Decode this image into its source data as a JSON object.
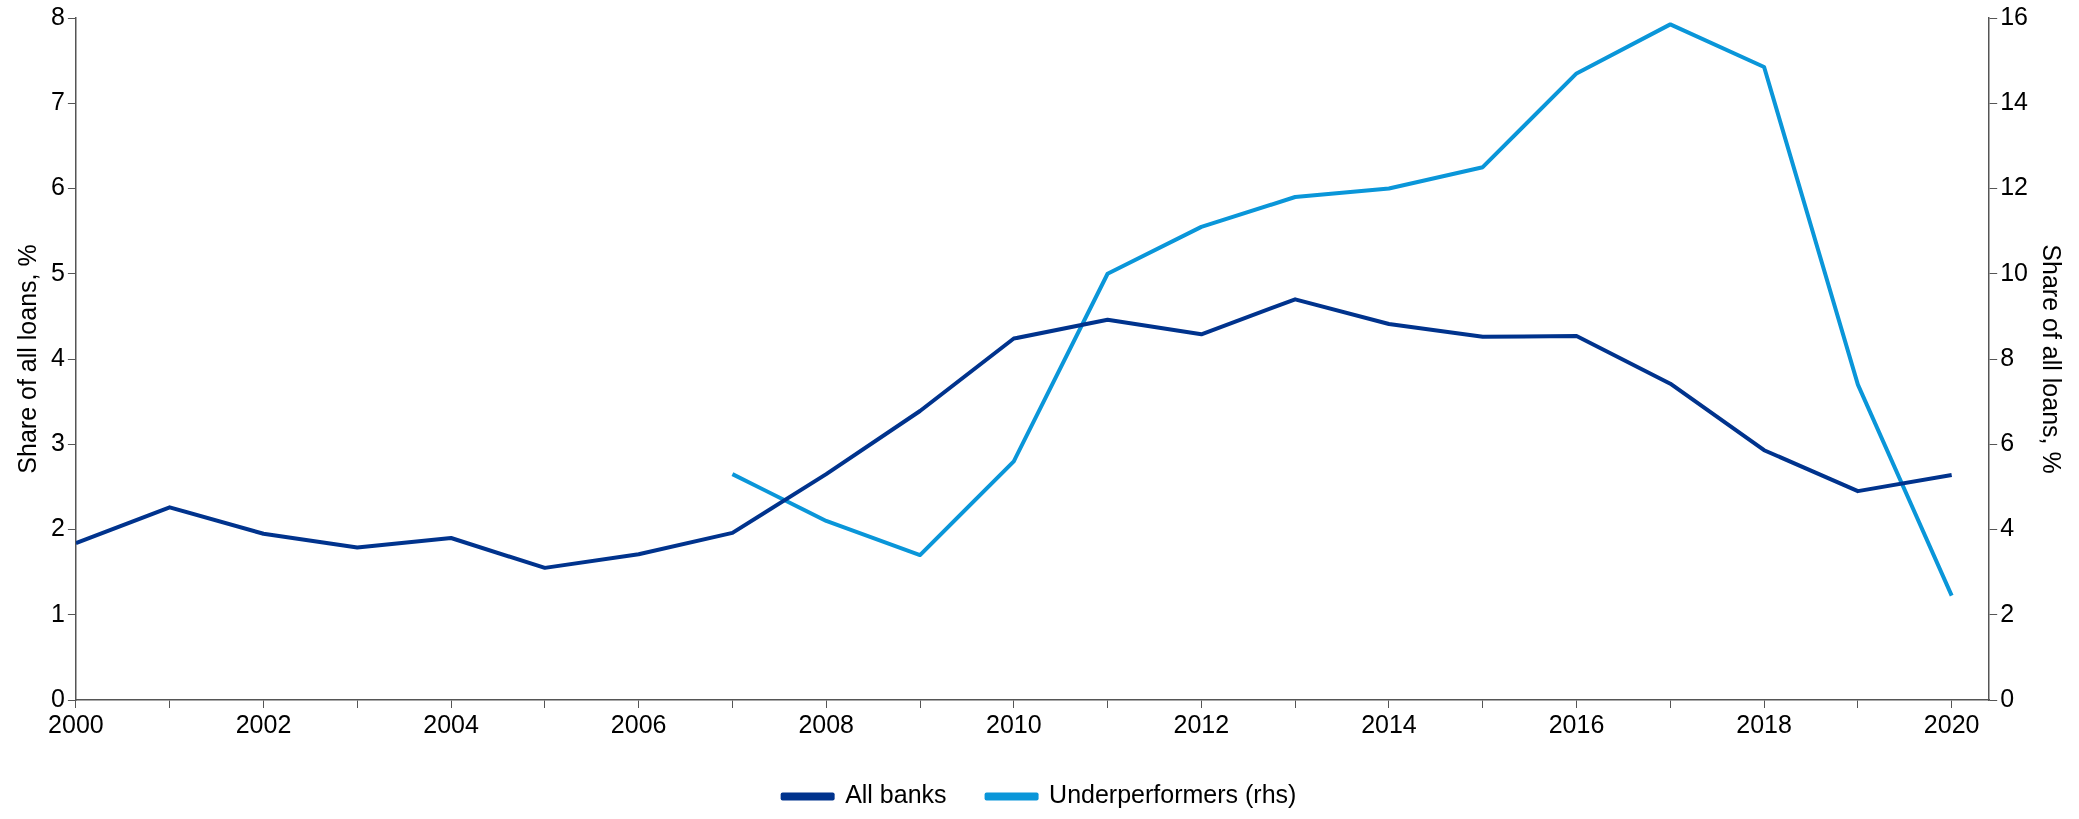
{
  "chart_data": {
    "type": "line",
    "ylabel": "Share of all loans, %",
    "y2label": "Share of all loans, %",
    "xlim": [
      2000,
      2020.4
    ],
    "xticks": [
      2000,
      {
        "value": 2001,
        "label": null
      },
      2002,
      {
        "value": 2003,
        "label": null
      },
      2004,
      {
        "value": 2005,
        "label": null
      },
      2006,
      {
        "value": 2007,
        "label": null
      },
      2008,
      {
        "value": 2009,
        "label": null
      },
      2010,
      {
        "value": 2011,
        "label": null
      },
      2012,
      {
        "value": 2013,
        "label": null
      },
      2014,
      {
        "value": 2015,
        "label": null
      },
      2016,
      {
        "value": 2017,
        "label": null
      },
      2018,
      {
        "value": 2019,
        "label": null
      },
      2020
    ],
    "ylim": [
      0,
      8
    ],
    "yticks": [
      0,
      1,
      2,
      3,
      4,
      5,
      6,
      7,
      8
    ],
    "y2lim": [
      0,
      16
    ],
    "y2ticks": [
      0,
      2,
      4,
      6,
      8,
      10,
      12,
      14,
      16
    ],
    "grid": false,
    "legend": "bottom",
    "marker": "none",
    "series": [
      {
        "name": "All banks",
        "color": "#00338d",
        "x": [
          2000,
          2001,
          2002,
          2003,
          2004,
          2005,
          2006,
          2007,
          2008,
          2009,
          2010,
          2011,
          2012,
          2013,
          2014,
          2015,
          2016,
          2017,
          2018,
          2019,
          2020
        ],
        "values": [
          1.84,
          2.26,
          1.95,
          1.79,
          1.9,
          1.55,
          1.71,
          1.96,
          2.65,
          3.39,
          4.24,
          4.46,
          4.29,
          4.7,
          4.41,
          4.26,
          4.27,
          3.71,
          2.93,
          2.45,
          2.64
        ]
      },
      {
        "name": "Underperformers (rhs)",
        "color": "#0a96d9",
        "axis": "y2",
        "x": [
          2007,
          2008,
          2009,
          2010,
          2011,
          2012,
          2013,
          2014,
          2015,
          2016,
          2017,
          2018,
          2019,
          2020
        ],
        "values": [
          5.3,
          4.2,
          3.4,
          5.6,
          10.0,
          11.1,
          11.8,
          12.0,
          12.5,
          14.7,
          15.85,
          14.85,
          7.4,
          2.45
        ]
      }
    ]
  }
}
